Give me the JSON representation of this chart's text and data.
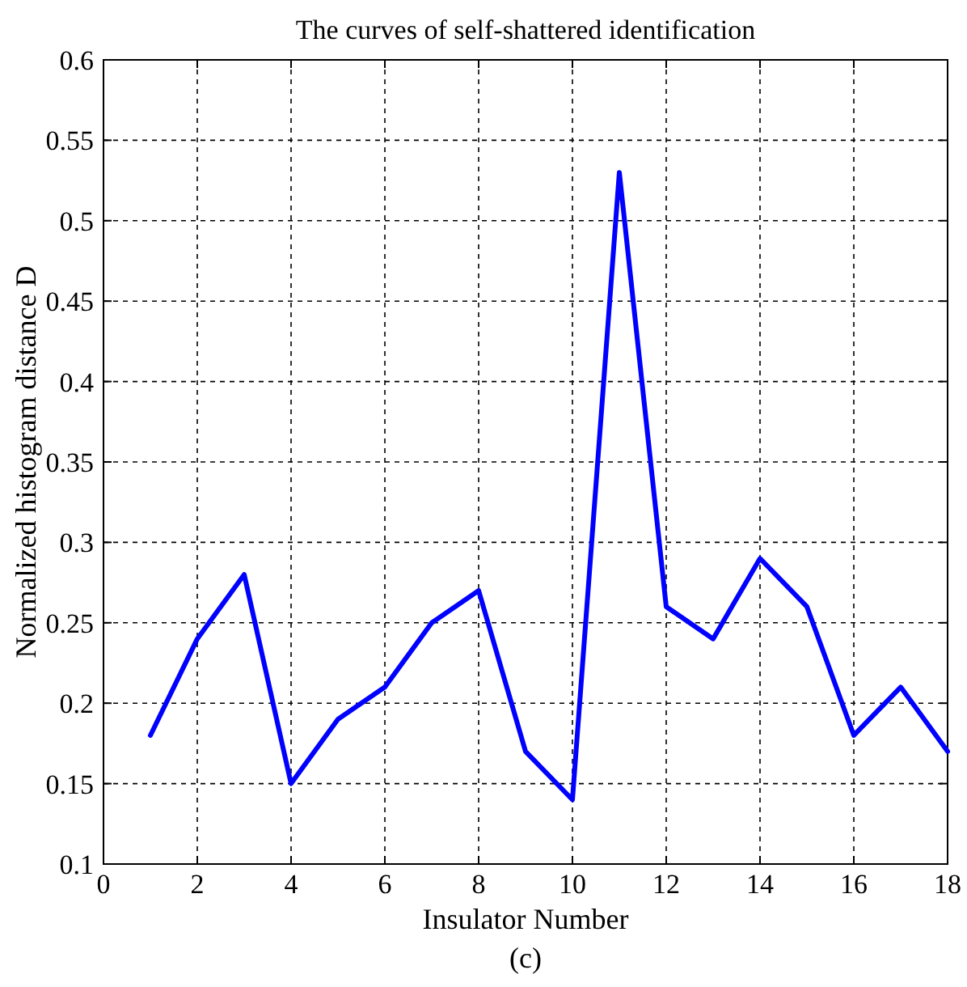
{
  "chart_data": {
    "type": "line",
    "title": "The curves of self-shattered identification",
    "xlabel": "Insulator Number",
    "ylabel": "Normalized histogram distance D",
    "annotations": [
      "(c)"
    ],
    "x": [
      1,
      2,
      3,
      4,
      5,
      6,
      7,
      8,
      9,
      10,
      11,
      12,
      13,
      14,
      15,
      16,
      17,
      18
    ],
    "series": [
      {
        "color": "#0000ff",
        "values": [
          0.18,
          0.24,
          0.28,
          0.15,
          0.19,
          0.21,
          0.25,
          0.27,
          0.17,
          0.14,
          0.53,
          0.26,
          0.24,
          0.29,
          0.26,
          0.18,
          0.21,
          0.17
        ]
      }
    ],
    "xlim": [
      0,
      18
    ],
    "ylim": [
      0.1,
      0.6
    ],
    "xticks": [
      0,
      2,
      4,
      6,
      8,
      10,
      12,
      14,
      16,
      18
    ],
    "yticks": [
      0.1,
      0.15,
      0.2,
      0.25,
      0.3,
      0.35,
      0.4,
      0.45,
      0.5,
      0.55,
      0.6
    ],
    "grid": true
  }
}
